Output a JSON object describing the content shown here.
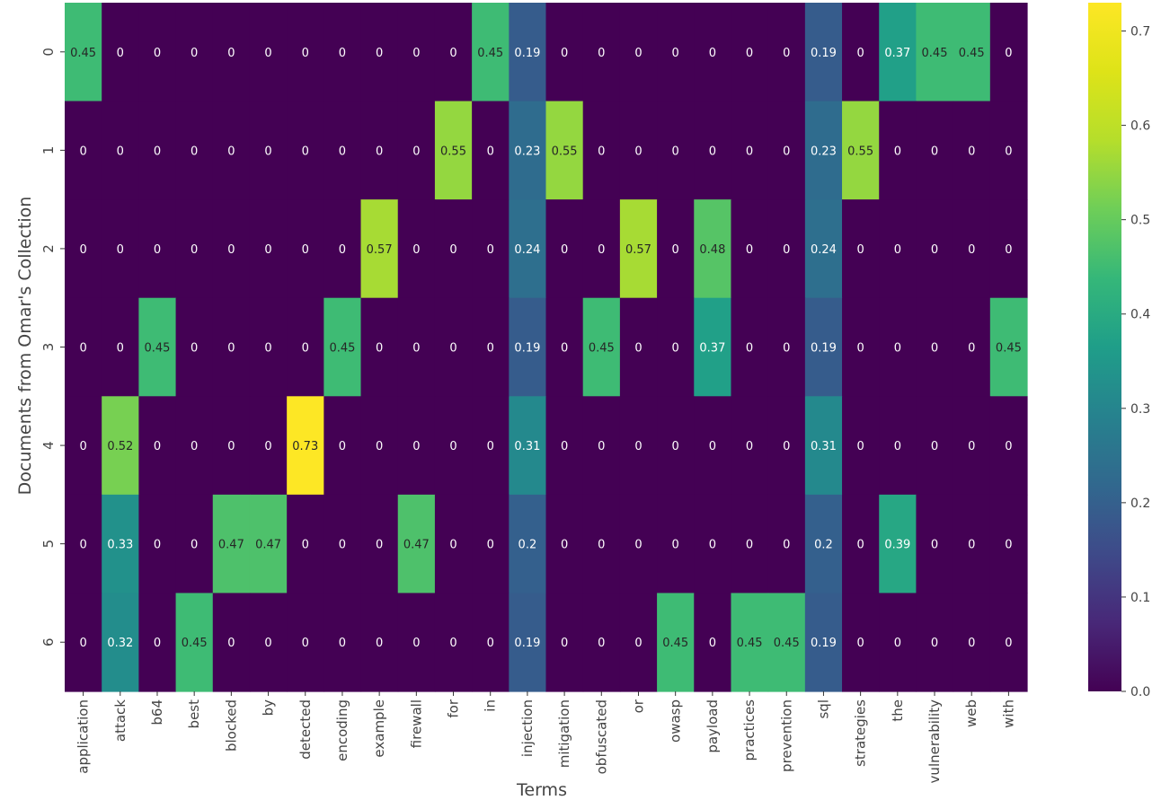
{
  "chart_data": {
    "type": "heatmap",
    "title": "",
    "xlabel": "Terms",
    "ylabel": "Documents from Omar's Collection",
    "x_categories": [
      "application",
      "attack",
      "b64",
      "best",
      "blocked",
      "by",
      "detected",
      "encoding",
      "example",
      "firewall",
      "for",
      "in",
      "injection",
      "mitigation",
      "obfuscated",
      "or",
      "owasp",
      "payload",
      "practices",
      "prevention",
      "sql",
      "strategies",
      "the",
      "vulnerability",
      "web",
      "with"
    ],
    "y_categories": [
      "0",
      "1",
      "2",
      "3",
      "4",
      "5",
      "6"
    ],
    "values": [
      [
        0.45,
        0,
        0,
        0,
        0,
        0,
        0,
        0,
        0,
        0,
        0,
        0.45,
        0.19,
        0,
        0,
        0,
        0,
        0,
        0,
        0,
        0.19,
        0,
        0.37,
        0.45,
        0.45,
        0
      ],
      [
        0,
        0,
        0,
        0,
        0,
        0,
        0,
        0,
        0,
        0,
        0.55,
        0,
        0.23,
        0.55,
        0,
        0,
        0,
        0,
        0,
        0,
        0.23,
        0.55,
        0,
        0,
        0,
        0
      ],
      [
        0,
        0,
        0,
        0,
        0,
        0,
        0,
        0,
        0.57,
        0,
        0,
        0,
        0.24,
        0,
        0,
        0.57,
        0,
        0.48,
        0,
        0,
        0.24,
        0,
        0,
        0,
        0,
        0
      ],
      [
        0,
        0,
        0.45,
        0,
        0,
        0,
        0,
        0.45,
        0,
        0,
        0,
        0,
        0.19,
        0,
        0.45,
        0,
        0,
        0.37,
        0,
        0,
        0.19,
        0,
        0,
        0,
        0,
        0.45
      ],
      [
        0,
        0.52,
        0,
        0,
        0,
        0,
        0.73,
        0,
        0,
        0,
        0,
        0,
        0.31,
        0,
        0,
        0,
        0,
        0,
        0,
        0,
        0.31,
        0,
        0,
        0,
        0,
        0
      ],
      [
        0,
        0.33,
        0,
        0,
        0.47,
        0.47,
        0,
        0,
        0,
        0.47,
        0,
        0,
        0.2,
        0,
        0,
        0,
        0,
        0,
        0,
        0,
        0.2,
        0,
        0.39,
        0,
        0,
        0
      ],
      [
        0,
        0.32,
        0,
        0.45,
        0,
        0,
        0,
        0,
        0,
        0,
        0,
        0,
        0.19,
        0,
        0,
        0,
        0.45,
        0,
        0.45,
        0.45,
        0.19,
        0,
        0,
        0,
        0,
        0
      ]
    ],
    "colormap": "viridis",
    "vmin": 0,
    "vmax": 0.73,
    "colorbar_ticks": [
      "0.0",
      "0.1",
      "0.2",
      "0.3",
      "0.4",
      "0.5",
      "0.6",
      "0.7"
    ],
    "annotated": true,
    "grid": false
  }
}
